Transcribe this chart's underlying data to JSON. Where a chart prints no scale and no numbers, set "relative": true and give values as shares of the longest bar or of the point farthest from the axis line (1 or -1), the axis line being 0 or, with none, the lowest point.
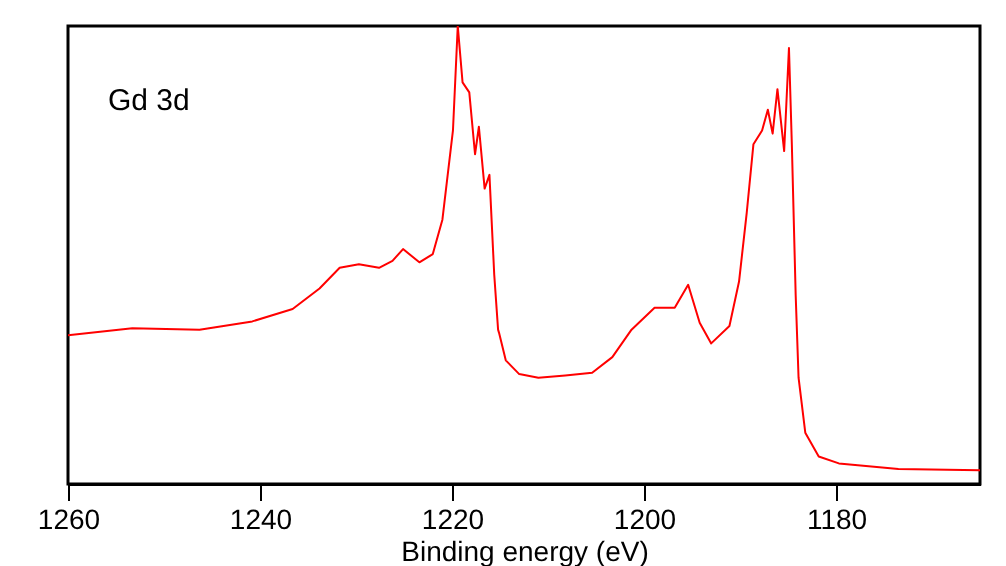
{
  "chart_data": {
    "type": "line",
    "xlabel": "Binding energy (eV)",
    "annotations": [
      "Gd 3d"
    ],
    "relative": true,
    "xlim": [
      1260,
      1165
    ],
    "xticks": [
      1260,
      1240,
      1220,
      1200,
      1180
    ],
    "x": [
      1260,
      1253.3,
      1246.3,
      1240.8,
      1236.6,
      1233.8,
      1231.7,
      1229.7,
      1227.6,
      1226.2,
      1225.1,
      1223.4,
      1222.0,
      1221.0,
      1219.9,
      1219.4,
      1218.9,
      1218.2,
      1217.6,
      1217.2,
      1216.6,
      1216.1,
      1215.6,
      1215.2,
      1215.1,
      1214.4,
      1213.0,
      1211.0,
      1208.2,
      1205.4,
      1203.3,
      1201.3,
      1198.9,
      1196.8,
      1195.4,
      1194.2,
      1193.0,
      1191.1,
      1190.1,
      1189.3,
      1188.6,
      1187.7,
      1187.1,
      1186.6,
      1186.1,
      1185.4,
      1184.9,
      1184.6,
      1184.2,
      1183.9,
      1183.2,
      1181.8,
      1179.7,
      1173.5,
      1165
    ],
    "series": [
      {
        "color": "#ff0000",
        "values": [
          0.325,
          0.34,
          0.337,
          0.355,
          0.382,
          0.427,
          0.472,
          0.48,
          0.472,
          0.487,
          0.513,
          0.484,
          0.502,
          0.577,
          0.772,
          1.0,
          0.877,
          0.855,
          0.72,
          0.78,
          0.645,
          0.675,
          0.457,
          0.337,
          0.33,
          0.27,
          0.24,
          0.232,
          0.237,
          0.243,
          0.277,
          0.337,
          0.385,
          0.385,
          0.435,
          0.352,
          0.307,
          0.345,
          0.442,
          0.592,
          0.742,
          0.772,
          0.817,
          0.765,
          0.862,
          0.727,
          0.952,
          0.742,
          0.412,
          0.232,
          0.112,
          0.06,
          0.045,
          0.033,
          0.03
        ]
      }
    ]
  }
}
